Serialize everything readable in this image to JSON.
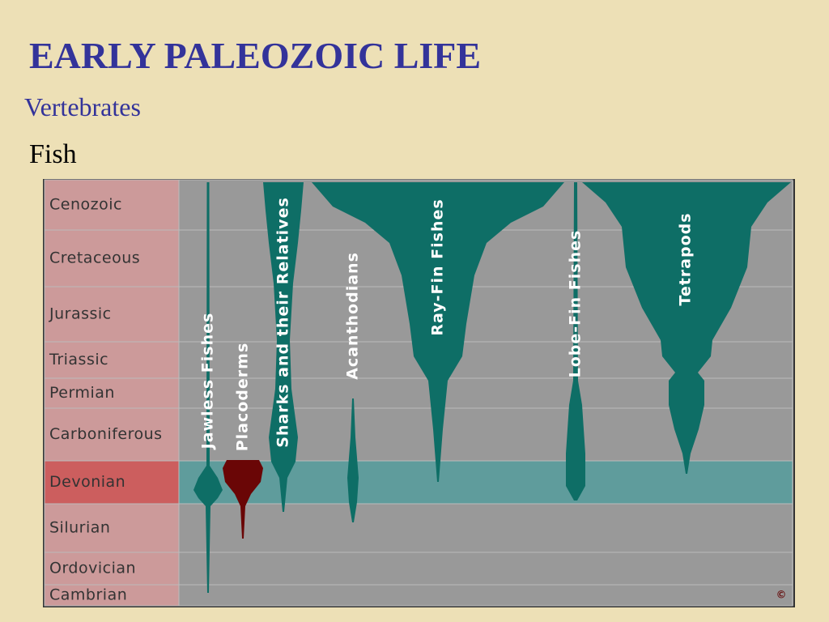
{
  "header": {
    "title": "EARLY PALEOZOIC LIFE",
    "subtitle": "Vertebrates",
    "heading": "Fish"
  },
  "diagram": {
    "periods": [
      "Cenozoic",
      "Cretaceous",
      "Jurassic",
      "Triassic",
      "Permian",
      "Carboniferous",
      "Devonian",
      "Silurian",
      "Ordovician",
      "Cambrian"
    ],
    "groups": [
      "Jawless Fishes",
      "Placoderms",
      "Sharks and their Relatives",
      "Acanthodians",
      "Ray-Fin Fishes",
      "Lobe-Fin Fishes",
      "Tetrapods"
    ],
    "copyright": "©"
  }
}
